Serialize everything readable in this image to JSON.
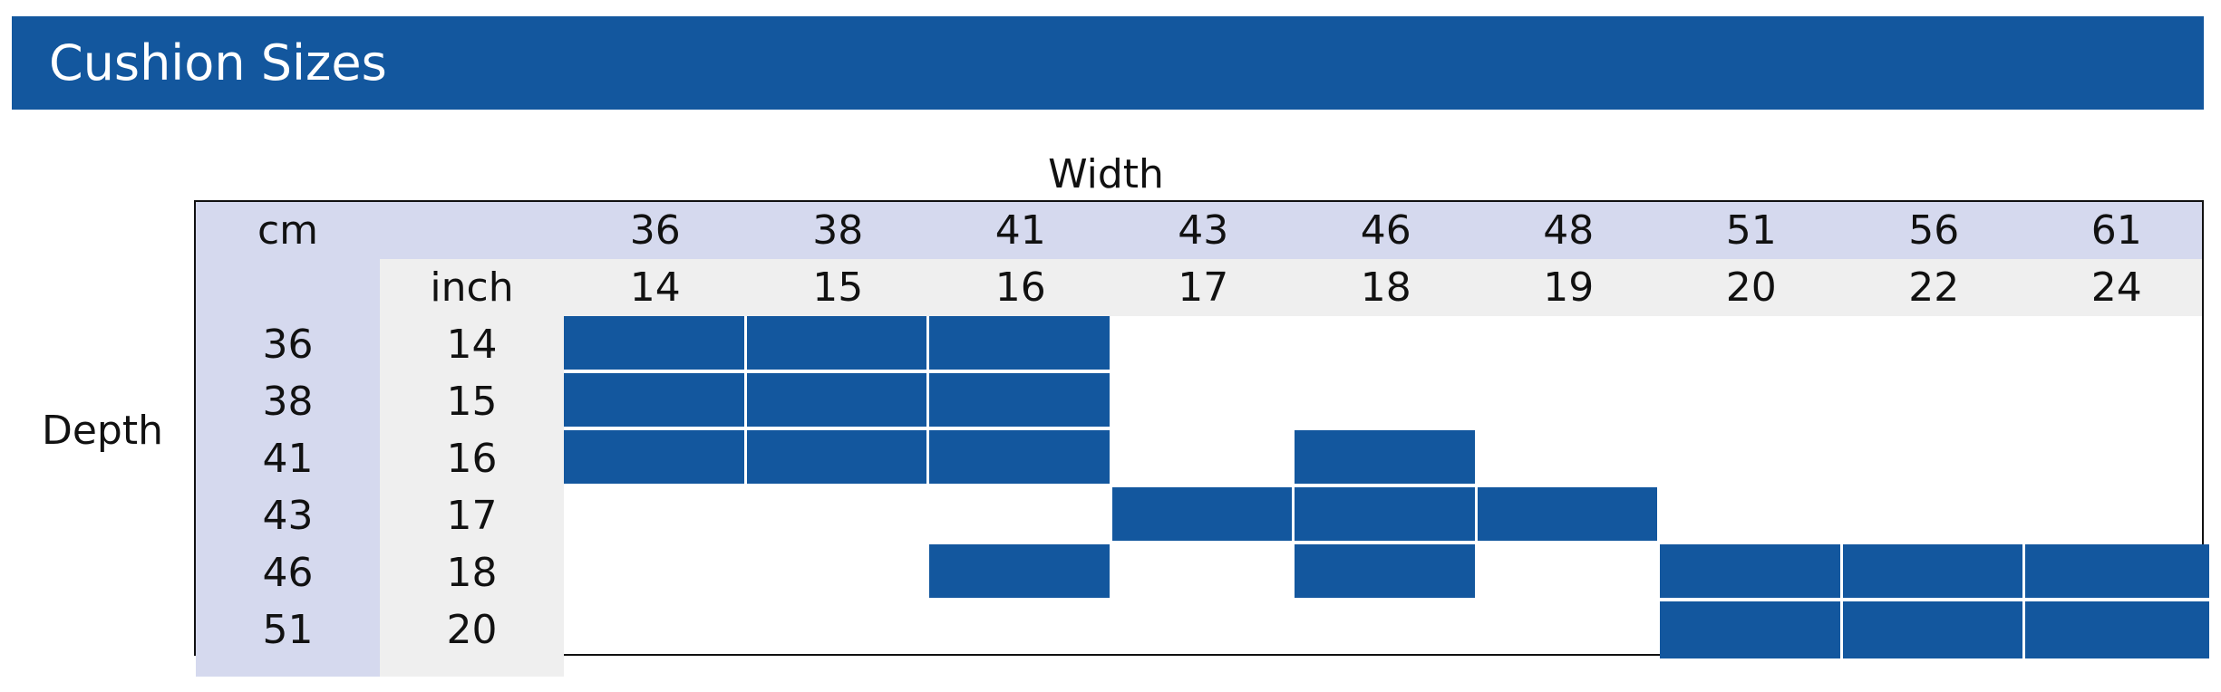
{
  "title": "Cushion Sizes",
  "width_label": "Width",
  "depth_label": "Depth",
  "cm_label": "cm",
  "inch_label": "inch",
  "colors": {
    "accent": "#13579e",
    "header_cm": "#d5d9ee",
    "header_inch": "#efefef"
  },
  "widths": [
    {
      "cm": "36",
      "inch": "14"
    },
    {
      "cm": "38",
      "inch": "15"
    },
    {
      "cm": "41",
      "inch": "16"
    },
    {
      "cm": "43",
      "inch": "17"
    },
    {
      "cm": "46",
      "inch": "18"
    },
    {
      "cm": "48",
      "inch": "19"
    },
    {
      "cm": "51",
      "inch": "20"
    },
    {
      "cm": "56",
      "inch": "22"
    },
    {
      "cm": "61",
      "inch": "24"
    }
  ],
  "depths": [
    {
      "cm": "36",
      "inch": "14"
    },
    {
      "cm": "38",
      "inch": "15"
    },
    {
      "cm": "41",
      "inch": "16"
    },
    {
      "cm": "43",
      "inch": "17"
    },
    {
      "cm": "46",
      "inch": "18"
    },
    {
      "cm": "51",
      "inch": "20"
    }
  ],
  "available": [
    [
      1,
      1,
      1,
      0,
      0,
      0,
      0,
      0,
      0
    ],
    [
      1,
      1,
      1,
      0,
      0,
      0,
      0,
      0,
      0
    ],
    [
      1,
      1,
      1,
      0,
      1,
      0,
      0,
      0,
      0
    ],
    [
      0,
      0,
      0,
      1,
      1,
      1,
      0,
      0,
      0
    ],
    [
      0,
      0,
      1,
      0,
      1,
      0,
      1,
      1,
      1
    ],
    [
      0,
      0,
      0,
      0,
      0,
      0,
      1,
      1,
      1
    ]
  ]
}
